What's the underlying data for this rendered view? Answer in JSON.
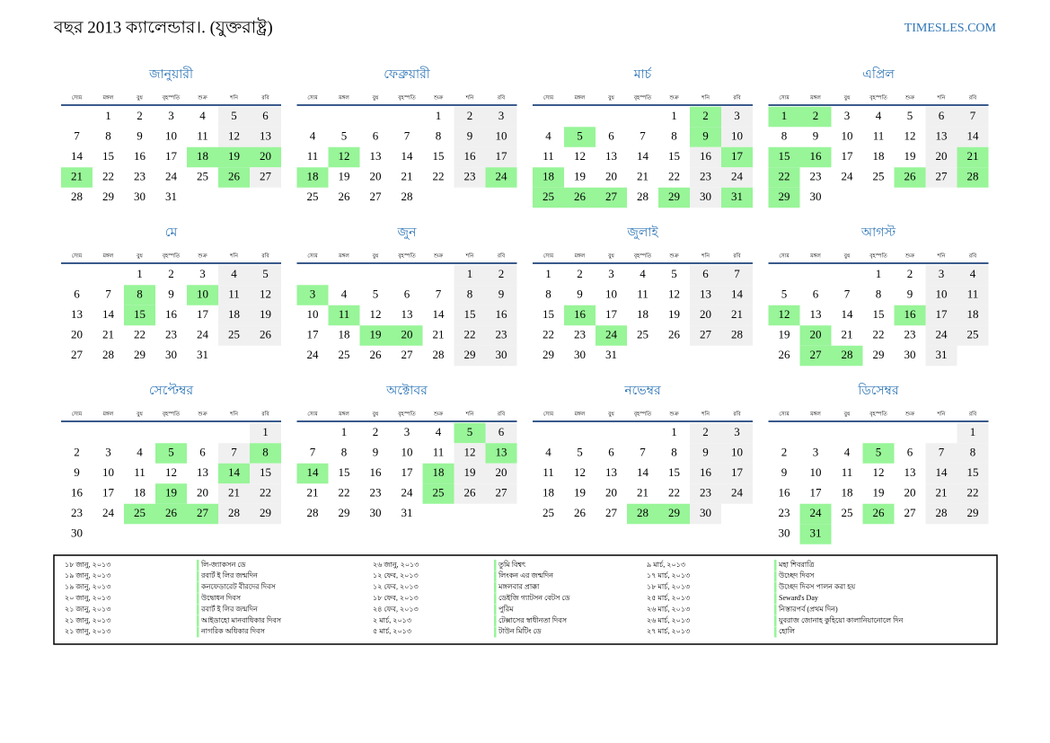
{
  "header": {
    "title": "বছর 2013 ক্যালেন্ডার।. (যুক্তরাষ্ট্র)",
    "site": "TIMESLES.COM"
  },
  "weekdays": [
    "সোম",
    "মঙ্গল",
    "বুধ",
    "বৃহস্পতি",
    "শুক্র",
    "শনি",
    "রবি"
  ],
  "highlight_color": "#98f598",
  "weekend_color": "#f0f0f0",
  "month_color": "#2e75b6",
  "months": [
    {
      "name": "জানুয়ারী",
      "weeks": [
        [
          null,
          1,
          2,
          3,
          4,
          5,
          6
        ],
        [
          7,
          8,
          9,
          10,
          11,
          12,
          13
        ],
        [
          14,
          15,
          16,
          17,
          18,
          19,
          20
        ],
        [
          21,
          22,
          23,
          24,
          25,
          26,
          27
        ],
        [
          28,
          29,
          30,
          31,
          null,
          null,
          null
        ]
      ],
      "highlight": [
        18,
        19,
        20,
        21,
        26
      ]
    },
    {
      "name": "ফেব্রুয়ারী",
      "weeks": [
        [
          null,
          null,
          null,
          null,
          1,
          2,
          3
        ],
        [
          4,
          5,
          6,
          7,
          8,
          9,
          10
        ],
        [
          11,
          12,
          13,
          14,
          15,
          16,
          17
        ],
        [
          18,
          19,
          20,
          21,
          22,
          23,
          24
        ],
        [
          25,
          26,
          27,
          28,
          null,
          null,
          null
        ]
      ],
      "highlight": [
        12,
        18,
        24
      ]
    },
    {
      "name": "মার্চ",
      "weeks": [
        [
          null,
          null,
          null,
          null,
          1,
          2,
          3
        ],
        [
          4,
          5,
          6,
          7,
          8,
          9,
          10
        ],
        [
          11,
          12,
          13,
          14,
          15,
          16,
          17
        ],
        [
          18,
          19,
          20,
          21,
          22,
          23,
          24
        ],
        [
          25,
          26,
          27,
          28,
          29,
          30,
          31
        ]
      ],
      "highlight": [
        2,
        5,
        9,
        17,
        18,
        25,
        26,
        27,
        29,
        31
      ]
    },
    {
      "name": "এপ্রিল",
      "weeks": [
        [
          1,
          2,
          3,
          4,
          5,
          6,
          7
        ],
        [
          8,
          9,
          10,
          11,
          12,
          13,
          14
        ],
        [
          15,
          16,
          17,
          18,
          19,
          20,
          21
        ],
        [
          22,
          23,
          24,
          25,
          26,
          27,
          28
        ],
        [
          29,
          30,
          null,
          null,
          null,
          null,
          null
        ]
      ],
      "highlight": [
        1,
        2,
        15,
        16,
        21,
        22,
        26,
        28,
        29
      ]
    },
    {
      "name": "মে",
      "weeks": [
        [
          null,
          null,
          1,
          2,
          3,
          4,
          5
        ],
        [
          6,
          7,
          8,
          9,
          10,
          11,
          12
        ],
        [
          13,
          14,
          15,
          16,
          17,
          18,
          19
        ],
        [
          20,
          21,
          22,
          23,
          24,
          25,
          26
        ],
        [
          27,
          28,
          29,
          30,
          31,
          null,
          null
        ]
      ],
      "highlight": [
        8,
        10,
        15
      ]
    },
    {
      "name": "জুন",
      "weeks": [
        [
          null,
          null,
          null,
          null,
          null,
          1,
          2
        ],
        [
          3,
          4,
          5,
          6,
          7,
          8,
          9
        ],
        [
          10,
          11,
          12,
          13,
          14,
          15,
          16
        ],
        [
          17,
          18,
          19,
          20,
          21,
          22,
          23
        ],
        [
          24,
          25,
          26,
          27,
          28,
          29,
          30
        ]
      ],
      "highlight": [
        3,
        11,
        19,
        20
      ]
    },
    {
      "name": "জুলাই",
      "weeks": [
        [
          1,
          2,
          3,
          4,
          5,
          6,
          7
        ],
        [
          8,
          9,
          10,
          11,
          12,
          13,
          14
        ],
        [
          15,
          16,
          17,
          18,
          19,
          20,
          21
        ],
        [
          22,
          23,
          24,
          25,
          26,
          27,
          28
        ],
        [
          29,
          30,
          31,
          null,
          null,
          null,
          null
        ]
      ],
      "highlight": [
        16,
        24
      ]
    },
    {
      "name": "আগস্ট",
      "weeks": [
        [
          null,
          null,
          null,
          1,
          2,
          3,
          4
        ],
        [
          5,
          6,
          7,
          8,
          9,
          10,
          11
        ],
        [
          12,
          13,
          14,
          15,
          16,
          17,
          18
        ],
        [
          19,
          20,
          21,
          22,
          23,
          24,
          25
        ],
        [
          26,
          27,
          28,
          29,
          30,
          31,
          null
        ]
      ],
      "highlight": [
        12,
        16,
        20,
        27,
        28
      ]
    },
    {
      "name": "সেপ্টেম্বর",
      "weeks": [
        [
          null,
          null,
          null,
          null,
          null,
          null,
          1
        ],
        [
          2,
          3,
          4,
          5,
          6,
          7,
          8
        ],
        [
          9,
          10,
          11,
          12,
          13,
          14,
          15
        ],
        [
          16,
          17,
          18,
          19,
          20,
          21,
          22
        ],
        [
          23,
          24,
          25,
          26,
          27,
          28,
          29
        ],
        [
          30,
          null,
          null,
          null,
          null,
          null,
          null
        ]
      ],
      "highlight": [
        5,
        8,
        14,
        19,
        25,
        26,
        27
      ]
    },
    {
      "name": "অক্টোবর",
      "weeks": [
        [
          null,
          1,
          2,
          3,
          4,
          5,
          6
        ],
        [
          7,
          8,
          9,
          10,
          11,
          12,
          13
        ],
        [
          14,
          15,
          16,
          17,
          18,
          19,
          20
        ],
        [
          21,
          22,
          23,
          24,
          25,
          26,
          27
        ],
        [
          28,
          29,
          30,
          31,
          null,
          null,
          null
        ]
      ],
      "highlight": [
        5,
        13,
        14,
        18,
        25
      ]
    },
    {
      "name": "নভেম্বর",
      "weeks": [
        [
          null,
          null,
          null,
          null,
          1,
          2,
          3
        ],
        [
          4,
          5,
          6,
          7,
          8,
          9,
          10
        ],
        [
          11,
          12,
          13,
          14,
          15,
          16,
          17
        ],
        [
          18,
          19,
          20,
          21,
          22,
          23,
          24
        ],
        [
          25,
          26,
          27,
          28,
          29,
          30,
          null
        ]
      ],
      "highlight": [
        28,
        29
      ]
    },
    {
      "name": "ডিসেম্বর",
      "weeks": [
        [
          null,
          null,
          null,
          null,
          null,
          null,
          1
        ],
        [
          2,
          3,
          4,
          5,
          6,
          7,
          8
        ],
        [
          9,
          10,
          11,
          12,
          13,
          14,
          15
        ],
        [
          16,
          17,
          18,
          19,
          20,
          21,
          22
        ],
        [
          23,
          24,
          25,
          26,
          27,
          28,
          29
        ],
        [
          30,
          31,
          null,
          null,
          null,
          null,
          null
        ]
      ],
      "highlight": [
        5,
        24,
        26,
        31
      ]
    }
  ],
  "holidays": [
    {
      "date": "১৮ জানু, ২০১৩",
      "name": "লি-জ্যাকসন ডে"
    },
    {
      "date": "১৯ জানু, ২০১৩",
      "name": "রবার্ট ই লির জন্মদিন"
    },
    {
      "date": "১৯ জানু, ২০১৩",
      "name": "কনফেডারেট বীরদের দিবস"
    },
    {
      "date": "২০ জানু, ২০১৩",
      "name": "উদ্বোধন দিবস"
    },
    {
      "date": "২১ জানু, ২০১৩",
      "name": "রবার্ট ই লির জন্মদিন"
    },
    {
      "date": "২১ জানু, ২০১৩",
      "name": "আইডাহো মানবাধিকার দিবস"
    },
    {
      "date": "২১ জানু, ২০১৩",
      "name": "নাগরিক অধিকার দিবস"
    },
    {
      "date": "২৬ জানু, ২০১৩",
      "name": "তুমি বিশ্বৎ"
    },
    {
      "date": "১২ ফেব, ২০১৩",
      "name": "লিংকন এর জন্মদিন"
    },
    {
      "date": "১২ ফেব, ২০১৩",
      "name": "মঙ্গলবার প্রাক্কা"
    },
    {
      "date": "১৮ ফেব, ২০১৩",
      "name": "ডেইজি গ্যাটসন বেটস ডে"
    },
    {
      "date": "২৪ ফেব, ২০১৩",
      "name": "পুরিম"
    },
    {
      "date": "২ মার্চ, ২০১৩",
      "name": "টেক্সাসের স্বাধীনতা দিবস"
    },
    {
      "date": "৫ মার্চ, ২০১৩",
      "name": "টাউন মিটিং ডে"
    },
    {
      "date": "৯ মার্চ, ২০১৩",
      "name": "মহা শিবরাত্রি"
    },
    {
      "date": "১৭ মার্চ, ২০১৩",
      "name": "উচ্ছেদ দিবস"
    },
    {
      "date": "১৮ মার্চ, ২০১৩",
      "name": "উচ্ছেদ দিবস পালন করা হয়"
    },
    {
      "date": "২৫ মার্চ, ২০১৩",
      "name": "Seward's Day"
    },
    {
      "date": "২৬ মার্চ, ২০১৩",
      "name": "নিস্তারপর্ব (প্রথম দিন)"
    },
    {
      "date": "২৬ মার্চ, ২০১৩",
      "name": "যুবরাজ জোনাহ কুহিয়ো কালানিয়ানোলে দিন"
    },
    {
      "date": "২৭ মার্চ, ২০১৩",
      "name": "হোলি"
    }
  ]
}
